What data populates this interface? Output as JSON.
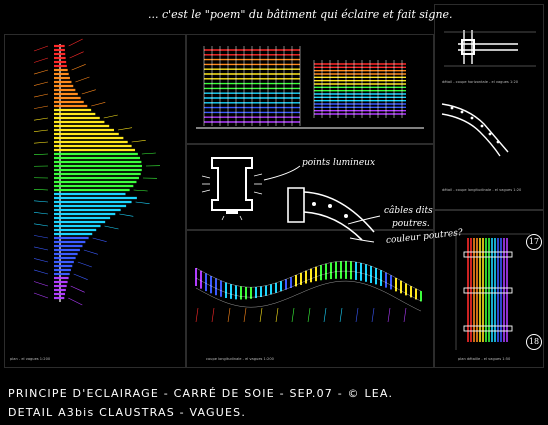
{
  "annotations": {
    "top_note": "... c'est le \"poem\" du bâtiment qui éclaire et fait signe.",
    "points_lumineux": "points lumineux",
    "cables_line1": "câbles dits",
    "cables_line2": "poutres.",
    "couleur_poutres": "couleur poutres?",
    "marker_17": "17",
    "marker_18": "18"
  },
  "captions": {
    "plan_left": "plan - el vagues 1:200",
    "section_long": "coupe longitudinale - el vagues 1:200",
    "plan_detail": "plan détaille - el vagues 1:50",
    "cut_top": "détail - coupe horizontale - el vagues 1:20",
    "cut_mid": "détail - coupe longitudinale - el vagues 1:20"
  },
  "footer": {
    "line1": "PRINCIPE  D'ECLAIRAGE - CARRÉ DE SOIE - SEP.07 - © LEA.",
    "line2": "DETAIL  A3bis CLAUSTRAS - VAGUES."
  },
  "colors": {
    "background": "#000000",
    "spectrum": [
      "#ff2a2a",
      "#ff8a1c",
      "#ffe81c",
      "#3cff3c",
      "#1cd6ff",
      "#3b5bff",
      "#b03cff"
    ]
  }
}
